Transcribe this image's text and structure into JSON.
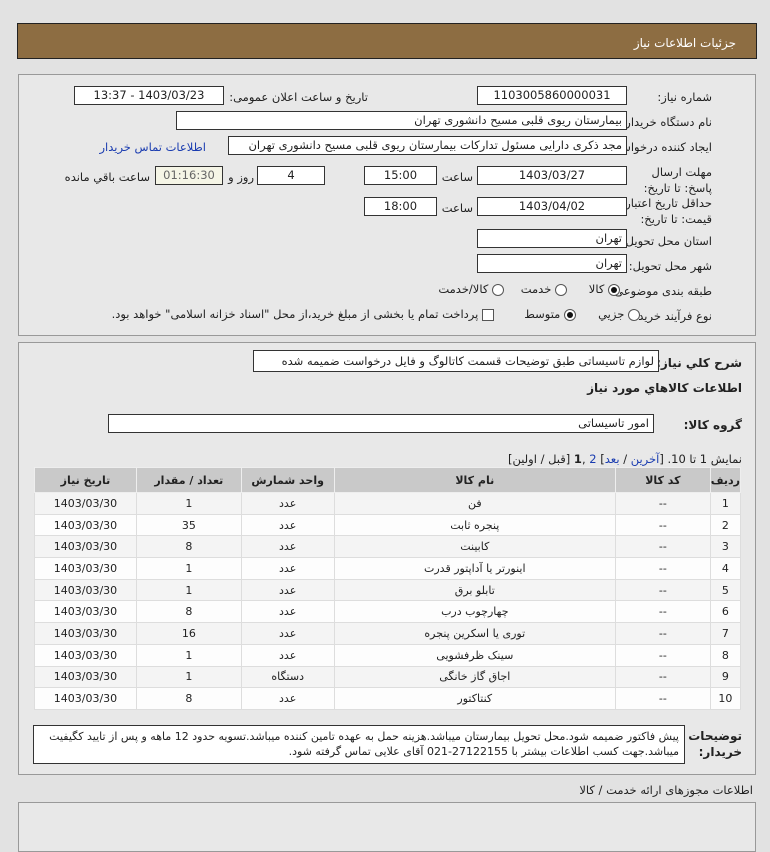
{
  "header": {
    "title": "جزئیات اطلاعات نیاز"
  },
  "fields": {
    "need_no_label": "شماره نیاز:",
    "need_no": "1103005860000031",
    "announce_label": "تاریخ و ساعت اعلان عمومی:",
    "announce": "1403/03/23 - 13:37",
    "buyer_label": "نام دستگاه خریدار:",
    "buyer": "بیمارستان ریوی قلبی مسیح دانشوری تهران",
    "creator_label": "ایجاد کننده درخواست:",
    "creator": "مجد ذکری دارایی مسئول تدارکات بیمارستان ریوی قلبی مسیح دانشوری تهران",
    "contact_link": "اطلاعات تماس خریدار",
    "deadline_label": "مهلت ارسال پاسخ: تا تاریخ:",
    "deadline_date": "1403/03/27",
    "time_label": "ساعت",
    "deadline_time": "15:00",
    "days": "4",
    "days_label": "روز و",
    "remaining": "01:16:30",
    "remaining_label": "ساعت باقي مانده",
    "validity_label": "حداقل تاریخ اعتبار قیمت: تا تاریخ:",
    "validity_date": "1403/04/02",
    "validity_time": "18:00",
    "province_label": "استان محل تحویل:",
    "province": "تهران",
    "city_label": "شهر محل تحویل:",
    "city": "تهران",
    "category_label": "طبقه بندی موضوعی:",
    "category_options": [
      "کالا",
      "خدمت",
      "کالا/خدمت"
    ],
    "category_selected": "کالا",
    "process_label": "نوع فرآیند خرید :",
    "process_options": [
      "جزیي",
      "متوسط"
    ],
    "process_selected": "متوسط",
    "payment_note": "پرداخت تمام یا بخشی از مبلغ خرید،از محل \"اسناد خزانه اسلامی\" خواهد بود."
  },
  "summary": {
    "label": "شرح کلي نياز:",
    "value": "لوازم تاسیساتی طبق توضیحات قسمت کاتالوگ و فایل درخواست ضمیمه شده"
  },
  "goods_title": "اطلاعات کالاهاي مورد نياز",
  "group": {
    "label": "گروه کالا:",
    "value": "امور تاسیساتی"
  },
  "pager": {
    "text": "نمایش 1 تا 10.",
    "open": "[",
    "last": "آخرین",
    "sep1": "/",
    "next": "بعد",
    "close1": "]",
    "page2": "2",
    "comma": ",",
    "page1": "1",
    "prevfirst": "[قبل / اولین]"
  },
  "table": {
    "headers": [
      "ردیف",
      "کد کالا",
      "نام کالا",
      "واحد شمارش",
      "تعداد / مقدار",
      "تاریخ نیاز"
    ],
    "rows": [
      [
        "1",
        "--",
        "فن",
        "عدد",
        "1",
        "1403/03/30"
      ],
      [
        "2",
        "--",
        "پنجره ثابت",
        "عدد",
        "35",
        "1403/03/30"
      ],
      [
        "3",
        "--",
        "کابینت",
        "عدد",
        "8",
        "1403/03/30"
      ],
      [
        "4",
        "--",
        "اینورتر یا آداپتور قدرت",
        "عدد",
        "1",
        "1403/03/30"
      ],
      [
        "5",
        "--",
        "تابلو برق",
        "عدد",
        "1",
        "1403/03/30"
      ],
      [
        "6",
        "--",
        "چهارچوب درب",
        "عدد",
        "8",
        "1403/03/30"
      ],
      [
        "7",
        "--",
        "توری یا اسکرین پنجره",
        "عدد",
        "16",
        "1403/03/30"
      ],
      [
        "8",
        "--",
        "سینک ظرفشویی",
        "عدد",
        "1",
        "1403/03/30"
      ],
      [
        "9",
        "--",
        "اجاق گاز خانگی",
        "دستگاه",
        "1",
        "1403/03/30"
      ],
      [
        "10",
        "--",
        "کنتاکتور",
        "عدد",
        "8",
        "1403/03/30"
      ]
    ]
  },
  "notes": {
    "label": "توضیحات خریدار:",
    "value": "پیش فاکتور ضمیمه شود.محل تحویل بیمارستان میباشد.هزینه حمل به عهده تامین کننده میباشد.تسویه حدود 12 ماهه و پس از تایید کگیفیت میباشد.جهت کسب اطلاعات بیشتر با 27122155-021 آقای علایی تماس گرفته شود."
  },
  "permits_title": "اطلاعات مجوزهای ارائه خدمت / کالا",
  "colors": {
    "header": "#8d6d42",
    "link": "#1a3cb0"
  }
}
